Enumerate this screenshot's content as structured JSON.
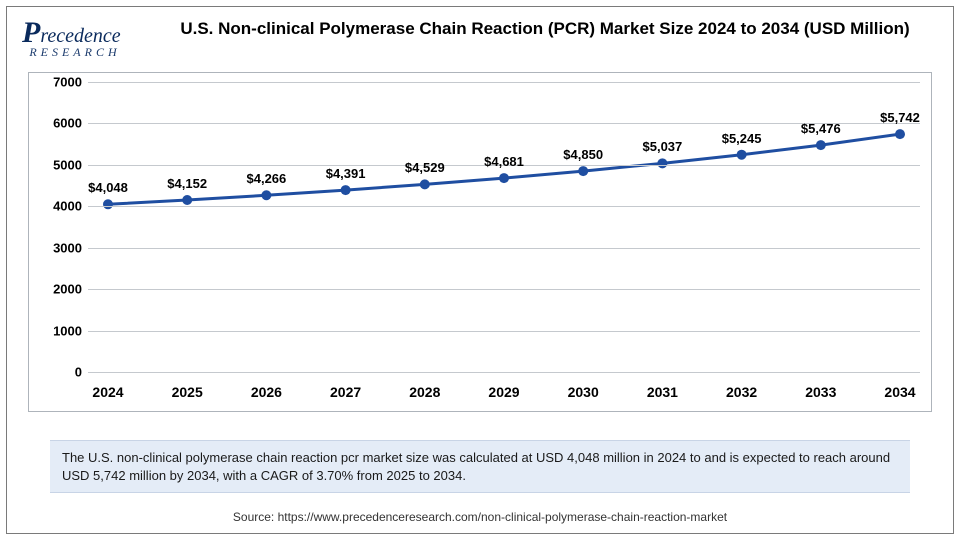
{
  "logo": {
    "line1": "Precedence",
    "line2": "RESEARCH"
  },
  "title": "U.S. Non-clinical Polymerase Chain Reaction (PCR) Market Size 2024 to 2034 (USD Million)",
  "chart": {
    "type": "line",
    "years": [
      "2024",
      "2025",
      "2026",
      "2027",
      "2028",
      "2029",
      "2030",
      "2031",
      "2032",
      "2033",
      "2034"
    ],
    "values": [
      4048,
      4152,
      4266,
      4391,
      4529,
      4681,
      4850,
      5037,
      5245,
      5476,
      5742
    ],
    "labels": [
      "$4,048",
      "$4,152",
      "$4,266",
      "$4,391",
      "$4,529",
      "$4,681",
      "$4,850",
      "$5,037",
      "$5,245",
      "$5,476",
      "$5,742"
    ],
    "ylim": [
      0,
      7000
    ],
    "ytick_step": 1000,
    "yticks_labels": [
      "0",
      "1000",
      "2000",
      "3000",
      "4000",
      "5000",
      "6000",
      "7000"
    ],
    "line_color": "#1f4ea1",
    "line_width": 3,
    "marker_size": 5,
    "marker_color": "#1f4ea1",
    "grid_color": "#c5c9ce",
    "axis_color": "#6f7680",
    "background_color": "#ffffff",
    "label_fontsize": 13,
    "xlabel_fontsize": 14
  },
  "caption": "The U.S. non-clinical polymerase chain reaction pcr market size was calculated at USD 4,048 million in 2024 to and is expected to reach around USD 5,742 million by 2034, with a CAGR of 3.70% from 2025 to 2034.",
  "source": "Source: https://www.precedenceresearch.com/non-clinical-polymerase-chain-reaction-market"
}
